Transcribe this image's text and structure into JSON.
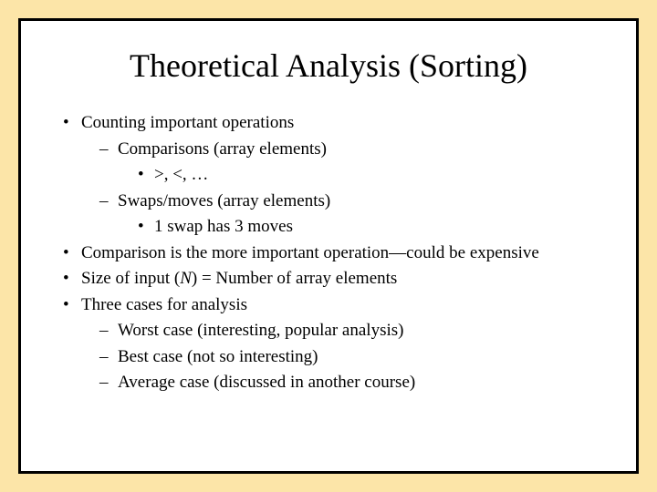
{
  "slide": {
    "title": "Theoretical Analysis (Sorting)",
    "background_color": "#fce5a8",
    "slide_background": "#ffffff",
    "border_color": "#000000",
    "font_family": "Times New Roman",
    "title_fontsize": 36,
    "body_fontsize": 19,
    "bullets": [
      {
        "text": "Counting important operations",
        "children": [
          {
            "text": "Comparisons (array elements)",
            "children": [
              {
                "text": ">, <, …"
              }
            ]
          },
          {
            "text": "Swaps/moves (array elements)",
            "children": [
              {
                "text": "1 swap has 3 moves"
              }
            ]
          }
        ]
      },
      {
        "text": "Comparison is the more important operation—could be expensive"
      },
      {
        "text_prefix": "Size of input (",
        "italic": "N",
        "text_suffix": ") = Number of array elements"
      },
      {
        "text": "Three cases for analysis",
        "children": [
          {
            "text": "Worst case (interesting, popular analysis)"
          },
          {
            "text": "Best case (not so interesting)"
          },
          {
            "text": "Average case (discussed in another course)"
          }
        ]
      }
    ]
  }
}
